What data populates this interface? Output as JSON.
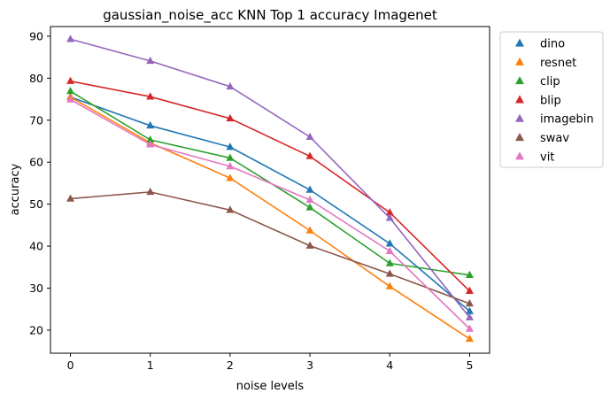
{
  "chart_data": {
    "type": "line",
    "title": "gaussian_noise_acc KNN Top 1 accuracy Imagenet",
    "xlabel": "noise levels",
    "ylabel": "accuracy",
    "x": [
      0,
      1,
      2,
      3,
      4,
      5
    ],
    "xlim": [
      -0.25,
      5.25
    ],
    "ylim": [
      14.5,
      92.3
    ],
    "xticks": [
      0,
      1,
      2,
      3,
      4,
      5
    ],
    "yticks": [
      20,
      30,
      40,
      50,
      60,
      70,
      80,
      90
    ],
    "grid": false,
    "legend_position": "outside-top-right",
    "marker": "triangle",
    "series": [
      {
        "name": "dino",
        "color": "#1f77b4",
        "values": [
          75.5,
          68.7,
          63.6,
          53.4,
          40.6,
          24.5
        ]
      },
      {
        "name": "resnet",
        "color": "#ff7f0e",
        "values": [
          75.5,
          64.6,
          56.2,
          43.7,
          30.4,
          17.9
        ]
      },
      {
        "name": "clip",
        "color": "#2ca02c",
        "values": [
          76.9,
          65.3,
          61.0,
          49.2,
          35.9,
          33.1
        ]
      },
      {
        "name": "blip",
        "color": "#d62728",
        "values": [
          79.3,
          75.6,
          70.4,
          61.4,
          48.0,
          29.3
        ]
      },
      {
        "name": "imagebin",
        "color": "#9467bd",
        "values": [
          89.3,
          84.1,
          78.0,
          66.0,
          46.7,
          23.0
        ]
      },
      {
        "name": "swav",
        "color": "#8c564b",
        "values": [
          51.3,
          52.9,
          48.6,
          40.1,
          33.4,
          26.3
        ]
      },
      {
        "name": "vit",
        "color": "#e377c2",
        "values": [
          74.9,
          64.2,
          59.0,
          51.0,
          38.8,
          20.3
        ]
      }
    ]
  }
}
